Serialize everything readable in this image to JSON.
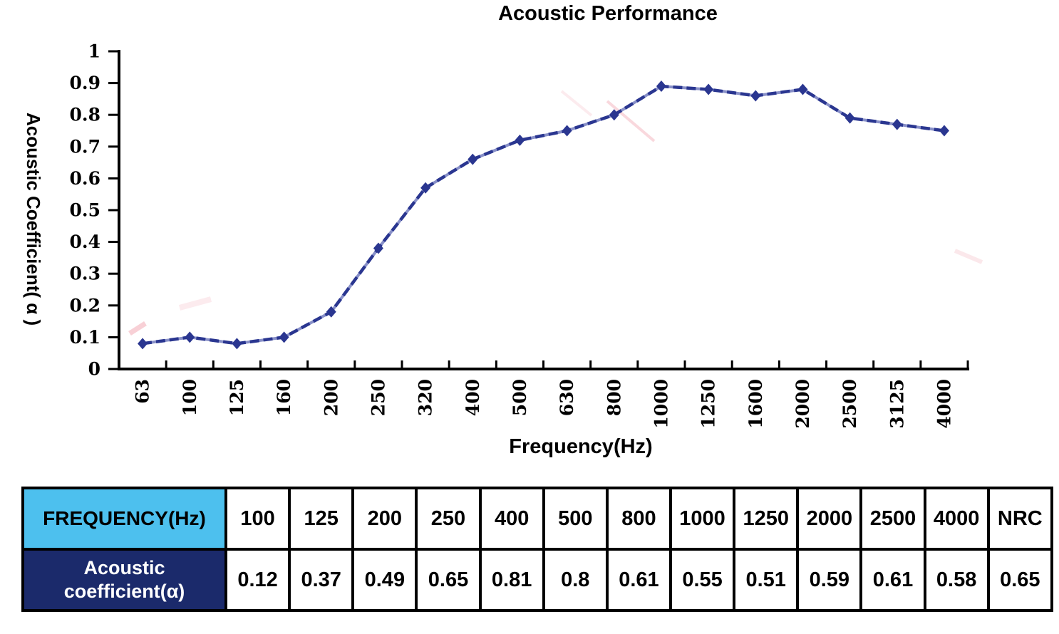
{
  "chart_data": {
    "type": "line",
    "title": "Acoustic Performance",
    "xlabel": "Frequency(Hz)",
    "ylabel": "Acoustic Coefficient( α )",
    "categories": [
      "63",
      "100",
      "125",
      "160",
      "200",
      "250",
      "320",
      "400",
      "500",
      "630",
      "800",
      "1000",
      "1250",
      "1600",
      "2000",
      "2500",
      "3125",
      "4000"
    ],
    "values": [
      0.08,
      0.1,
      0.08,
      0.1,
      0.18,
      0.38,
      0.57,
      0.66,
      0.72,
      0.75,
      0.8,
      0.89,
      0.88,
      0.86,
      0.88,
      0.79,
      0.77,
      0.75
    ],
    "series_name": "Acoustic coefficient",
    "ylim": [
      0,
      1
    ],
    "ytick_step": 0.1,
    "ytick_labels": [
      "0",
      "0.1",
      "0.2",
      "0.3",
      "0.4",
      "0.5",
      "0.6",
      "0.7",
      "0.8",
      "0.9",
      "1"
    ],
    "grid": false,
    "legend_position": "none",
    "marker": "diamond",
    "line_color": "#2a3690",
    "line_color_light": "#8890c8",
    "axis_color": "#000000"
  },
  "table": {
    "header_label": "FREQUENCY(Hz)",
    "row_label_lines": [
      "Acoustic",
      "coefficient(α)"
    ],
    "columns": [
      "100",
      "125",
      "200",
      "250",
      "400",
      "500",
      "800",
      "1000",
      "1250",
      "2000",
      "2500",
      "4000",
      "NRC"
    ],
    "values": [
      "0.12",
      "0.37",
      "0.49",
      "0.65",
      "0.81",
      "0.8",
      "0.61",
      "0.55",
      "0.51",
      "0.59",
      "0.61",
      "0.58",
      "0.65"
    ],
    "header_bg": "#4dc0ee",
    "row_label_bg": "#1b2a6b",
    "border_color": "#000000"
  }
}
